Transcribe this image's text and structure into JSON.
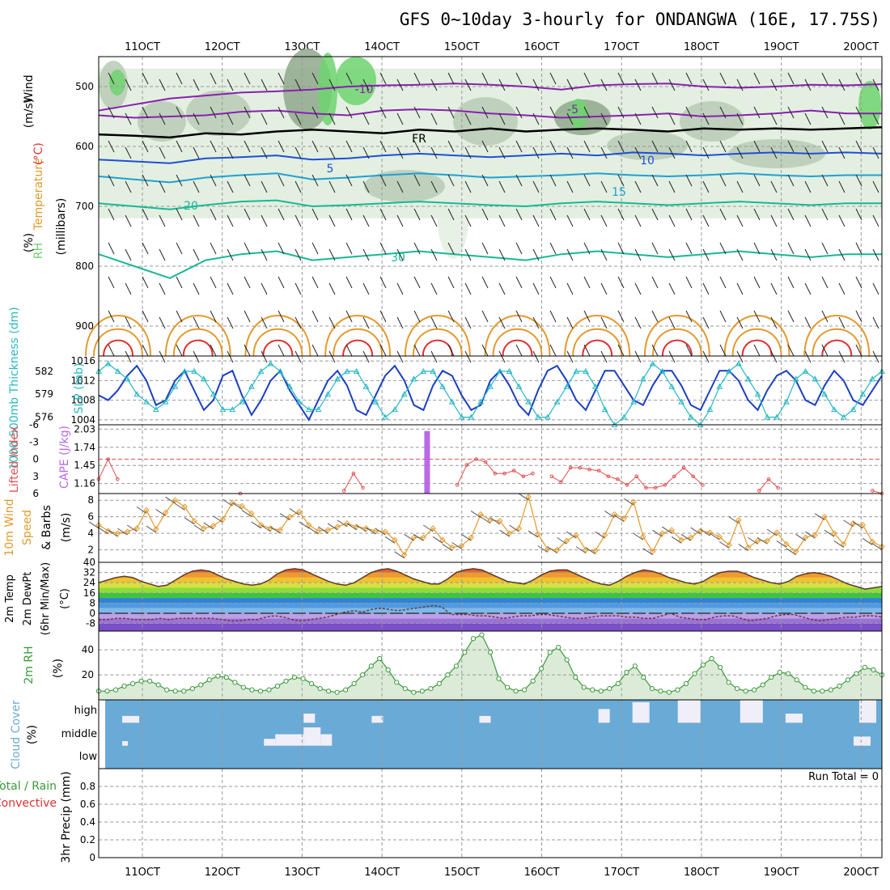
{
  "title": "GFS 0~10day 3-hourly for ONDANGWA (16E, 17.75S)",
  "x_axis": {
    "ticks": [
      "11OCT",
      "12OCT",
      "13OCT",
      "14OCT",
      "15OCT",
      "16OCT",
      "17OCT",
      "18OCT",
      "19OCT",
      "20OCT"
    ]
  },
  "colors": {
    "rh_light": "#e3efe0",
    "rh_mid": "#b9cbb6",
    "rh_dark": "#8fa88c",
    "rh_green": "#6fd46f",
    "wind_purple": "#8a1fb0",
    "freezing": "#000000",
    "temp_blue": "#1f4fd6",
    "temp_cyan": "#1fa0d6",
    "temp_teal": "#17b897",
    "temp_orange": "#e39a2d",
    "temp_red": "#e03030",
    "slp": "#1b3fc2",
    "thickness": "#27b8c4",
    "cape": "#b86ae8",
    "lifted_index": "#e05050",
    "wind_speed": "#e39a2d",
    "barb": "#555555",
    "rh2m": "#3a9a3a",
    "cloud_sky": "#6aaad6",
    "cloud_white": "#f0eef7"
  },
  "chart_data": [
    {
      "panel": "upper-air",
      "type": "heatmap",
      "ylabel_parts": [
        "Wind",
        "(m/s)",
        "Temperature",
        "(°C)",
        "RH",
        "(%)",
        "(millibars)"
      ],
      "y_ticks": [
        "500",
        "600",
        "700",
        "800",
        "900"
      ],
      "y_range": [
        450,
        950
      ],
      "contour_labels": [
        "-10",
        "-5",
        "FR",
        "5",
        "10",
        "15",
        "20",
        "30"
      ],
      "temperature_contours": [
        {
          "level": -10,
          "color": "wind_purple",
          "pressure": [
            540,
            530,
            520,
            515,
            510,
            508,
            505,
            500,
            498,
            497,
            495,
            497,
            500,
            505,
            498,
            496,
            495,
            500,
            502,
            500,
            497,
            498,
            496
          ]
        },
        {
          "level": -5,
          "color": "wind_purple",
          "pressure": [
            548,
            552,
            550,
            548,
            542,
            540,
            545,
            548,
            540,
            538,
            540,
            545,
            548,
            552,
            550,
            548,
            545,
            550,
            548,
            545,
            540,
            545,
            545
          ]
        },
        {
          "level": 0,
          "label": "FR",
          "color": "freezing",
          "pressure": [
            580,
            582,
            585,
            578,
            580,
            575,
            572,
            575,
            578,
            572,
            575,
            570,
            575,
            572,
            570,
            572,
            575,
            570,
            572,
            570,
            572,
            570,
            568
          ]
        },
        {
          "level": 5,
          "color": "temp_blue",
          "pressure": [
            622,
            625,
            628,
            620,
            618,
            615,
            622,
            620,
            615,
            612,
            615,
            618,
            615,
            612,
            615,
            610,
            612,
            615,
            612,
            610,
            612,
            610,
            612
          ]
        },
        {
          "level": 10,
          "color": "temp_cyan",
          "pressure": [
            650,
            655,
            660,
            652,
            648,
            645,
            655,
            652,
            648,
            645,
            648,
            652,
            650,
            648,
            645,
            648,
            650,
            648,
            645,
            648,
            650,
            648,
            648
          ]
        },
        {
          "level": 15,
          "color": "temp_teal",
          "pressure": [
            695,
            700,
            705,
            698,
            692,
            690,
            700,
            698,
            695,
            692,
            695,
            698,
            700,
            695,
            692,
            695,
            698,
            695,
            692,
            695,
            698,
            695,
            695
          ]
        },
        {
          "level": 20,
          "color": "temp_teal",
          "pressure": [
            780,
            800,
            820,
            790,
            780,
            775,
            790,
            785,
            780,
            775,
            780,
            785,
            790,
            780,
            775,
            780,
            785,
            780,
            775,
            780,
            785,
            780,
            780
          ]
        }
      ]
    },
    {
      "panel": "slp-thickness",
      "type": "line",
      "ylabel_left": "1000-500mb Thickness (dm)",
      "ylabel_right": "SLP (mb)",
      "left_ticks": [
        "582",
        "579",
        "576"
      ],
      "left_range": [
        575,
        584
      ],
      "right_ticks": [
        "1016",
        "1012",
        "1008",
        "1004"
      ],
      "right_range": [
        1003,
        1017
      ],
      "series": [
        {
          "key": "slp",
          "values": [
            1009,
            1008,
            1010,
            1013,
            1015,
            1012,
            1007,
            1008,
            1012,
            1014,
            1010,
            1006,
            1008,
            1013,
            1014,
            1009,
            1005,
            1008,
            1012,
            1014,
            1010,
            1007,
            1004,
            1008,
            1012,
            1014,
            1011,
            1006,
            1005,
            1009,
            1013,
            1015,
            1012,
            1007,
            1006,
            1011,
            1014,
            1013,
            1009,
            1006,
            1007,
            1012,
            1014,
            1011,
            1007,
            1005,
            1010,
            1014,
            1015,
            1012,
            1008,
            1006,
            1010,
            1014,
            1014,
            1011,
            1008,
            1007,
            1011,
            1014,
            1014,
            1011,
            1007,
            1006,
            1010,
            1014,
            1014,
            1012,
            1008,
            1006,
            1010,
            1013,
            1014,
            1012,
            1008,
            1007,
            1011,
            1014,
            1012,
            1008,
            1007,
            1010,
            1013
          ]
        },
        {
          "key": "thickness",
          "values": [
            582,
            583,
            582,
            581,
            579,
            578,
            577,
            578,
            580,
            582,
            582,
            581,
            579,
            577,
            577,
            578,
            580,
            582,
            583,
            582,
            580,
            578,
            577,
            577,
            579,
            581,
            582,
            582,
            580,
            578,
            576,
            577,
            579,
            581,
            582,
            582,
            580,
            578,
            576,
            576,
            578,
            580,
            582,
            582,
            580,
            578,
            576,
            576,
            578,
            580,
            582,
            582,
            580,
            577,
            575,
            576,
            578,
            581,
            583,
            582,
            580,
            578,
            576,
            575,
            577,
            580,
            582,
            583,
            581,
            579,
            576,
            576,
            578,
            581,
            582,
            581,
            579,
            577,
            576,
            577,
            579,
            581,
            582
          ]
        }
      ]
    },
    {
      "panel": "cape-lifted-index",
      "type": "bar",
      "ylabel_left": "Lifted Index",
      "ylabel_right": "CAPE (J/kg)",
      "left_ticks": [
        "-6",
        "-3",
        "0",
        "3",
        "6"
      ],
      "left_range": [
        -6,
        6
      ],
      "right_ticks": [
        "2.03",
        "1.74",
        "1.45",
        "1.16"
      ],
      "right_range": [
        1.0,
        2.1
      ],
      "lifted_index": [
        3.5,
        0.0,
        3.5,
        null,
        null,
        null,
        null,
        null,
        null,
        null,
        null,
        null,
        null,
        null,
        null,
        6.0,
        null,
        null,
        null,
        null,
        null,
        null,
        null,
        null,
        null,
        null,
        5.5,
        2.5,
        5.0,
        null,
        null,
        null,
        null,
        null,
        null,
        null,
        null,
        null,
        4.5,
        1.0,
        0.0,
        0.5,
        2.5,
        2.5,
        2.0,
        3.0,
        2.5,
        null,
        3.0,
        4.0,
        1.5,
        1.5,
        1.8,
        2.0,
        3.0,
        3.5,
        4.5,
        3.0,
        5.0,
        5.0,
        4.5,
        3.0,
        1.5,
        3.0,
        4.5,
        null,
        null,
        null,
        null,
        null,
        5.5,
        3.5,
        5.0,
        null,
        null,
        null,
        null,
        null,
        null,
        null,
        null,
        null,
        5.5,
        6.0
      ],
      "cape": {
        "x_index": 32,
        "value": 2.0
      }
    },
    {
      "panel": "wind10m",
      "type": "line",
      "ylabel": [
        "10m Wind",
        "Speed",
        "& Barbs",
        "(m/s)"
      ],
      "y_ticks": [
        "8",
        "6",
        "4",
        "2"
      ],
      "y_range": [
        0.5,
        8.8
      ],
      "speed": [
        5.0,
        4.3,
        4.0,
        4.2,
        4.6,
        6.8,
        4.5,
        6.5,
        8.0,
        7.2,
        5.5,
        4.6,
        4.9,
        5.7,
        7.7,
        7.3,
        6.4,
        5.0,
        4.6,
        4.4,
        6.0,
        6.6,
        5.0,
        4.3,
        4.4,
        4.8,
        5.2,
        4.8,
        4.6,
        4.3,
        4.2,
        3.2,
        1.4,
        3.5,
        3.5,
        4.6,
        3.2,
        2.3,
        2.5,
        3.5,
        6.3,
        5.6,
        5.5,
        4.0,
        4.6,
        8.4,
        3.9,
        2.1,
        2.0,
        3.1,
        3.8,
        2.0,
        1.9,
        3.8,
        6.3,
        5.8,
        7.8,
        3.6,
        1.8,
        4.0,
        4.4,
        3.2,
        3.5,
        4.3,
        4.1,
        3.6,
        2.6,
        5.6,
        2.3,
        3.1,
        3.1,
        4.1,
        2.7,
        1.8,
        3.5,
        3.8,
        6.0,
        4.0,
        2.7,
        5.2,
        5.0,
        3.0,
        2.4
      ]
    },
    {
      "panel": "temp2m",
      "type": "area",
      "ylabel": [
        "2m Temp",
        "2m DewPt",
        "(6hr Min/Max)",
        "(°C)"
      ],
      "y_ticks": [
        "40",
        "32",
        "24",
        "16",
        "8",
        "0",
        "-8"
      ],
      "y_range": [
        -14,
        40
      ],
      "temperature": [
        24,
        26,
        28,
        29,
        28,
        25,
        23,
        21,
        22,
        26,
        30,
        33,
        34,
        33,
        30,
        27,
        25,
        23,
        22,
        23,
        26,
        31,
        34,
        35,
        34,
        31,
        28,
        25,
        23,
        22,
        24,
        28,
        32,
        34,
        35,
        33,
        30,
        27,
        25,
        23,
        23,
        27,
        32,
        34,
        35,
        34,
        31,
        28,
        25,
        24,
        23,
        26,
        30,
        33,
        34,
        34,
        31,
        28,
        25,
        23,
        22,
        25,
        29,
        32,
        34,
        33,
        31,
        28,
        26,
        24,
        23,
        25,
        29,
        32,
        33,
        33,
        31,
        28,
        26,
        24,
        23,
        25,
        29,
        31,
        32,
        31,
        29,
        26,
        23,
        21,
        19,
        20,
        21
      ],
      "dewpoint": [
        -5,
        -5,
        -4,
        -4,
        -5,
        -5,
        -5,
        -4,
        -5,
        -4,
        -4,
        -4,
        -4,
        -4,
        -5,
        -6,
        -6,
        -5,
        -5,
        -3,
        -2,
        -3,
        -5,
        -6,
        -5,
        -4,
        -3,
        -1,
        1,
        2,
        1,
        3,
        4,
        3,
        2,
        3,
        4,
        5,
        6,
        5,
        -1,
        -1,
        -1,
        -2,
        -2,
        -3,
        -4,
        -3,
        -2,
        -2,
        -1,
        -1,
        -2,
        -3,
        -4,
        -4,
        -3,
        -2,
        -2,
        -2,
        -3,
        -3,
        -4,
        -4,
        -2,
        0,
        -3,
        -4,
        -5,
        -5,
        -3,
        -2,
        -2,
        -4,
        -6,
        -5,
        -4,
        -2,
        -1,
        -1,
        -3,
        -5,
        -6,
        -5,
        -4,
        -3,
        -3,
        -2,
        -2,
        -3
      ]
    },
    {
      "panel": "rh2m",
      "type": "area",
      "ylabel": [
        "2m RH",
        "(%)"
      ],
      "y_ticks": [
        "40",
        "20"
      ],
      "y_range": [
        0,
        55
      ],
      "values": [
        7,
        7,
        8,
        11,
        13,
        15,
        15,
        12,
        8,
        7,
        7,
        9,
        12,
        16,
        19,
        18,
        14,
        10,
        8,
        7,
        8,
        11,
        15,
        18,
        17,
        13,
        9,
        7,
        6,
        8,
        13,
        20,
        27,
        33,
        24,
        14,
        9,
        6,
        7,
        9,
        13,
        20,
        27,
        38,
        49,
        52,
        38,
        17,
        10,
        7,
        8,
        15,
        25,
        38,
        42,
        32,
        18,
        10,
        8,
        7,
        9,
        13,
        22,
        27,
        18,
        9,
        7,
        6,
        8,
        13,
        21,
        28,
        33,
        26,
        14,
        9,
        7,
        8,
        12,
        18,
        22,
        21,
        16,
        10,
        7,
        7,
        8,
        11,
        16,
        21,
        26,
        24,
        20
      ]
    },
    {
      "panel": "cloud-cover",
      "type": "bar",
      "ylabel": [
        "Cloud Cover",
        "(%)"
      ],
      "levels": [
        "high",
        "middle",
        "low"
      ],
      "high_segments": [
        [
          3,
          6,
          0.3
        ],
        [
          35,
          37,
          0.4
        ],
        [
          47,
          49,
          0.3
        ],
        [
          66,
          68,
          0.3
        ],
        [
          87,
          89,
          0.6
        ],
        [
          93,
          96,
          0.9
        ],
        [
          101,
          105,
          1.0
        ],
        [
          112,
          116,
          1.0
        ],
        [
          120,
          123,
          0.4
        ],
        [
          133,
          136,
          1.0
        ]
      ],
      "middle_segments": [
        [
          3,
          4,
          0.2
        ],
        [
          28,
          30,
          0.3
        ],
        [
          30,
          35,
          0.5
        ],
        [
          35,
          38,
          0.8
        ],
        [
          38,
          40,
          0.5
        ],
        [
          132,
          135,
          0.4
        ]
      ],
      "low_segments": []
    },
    {
      "panel": "precip",
      "type": "bar",
      "ylabel_left": [
        "Total / Rain",
        "Convective"
      ],
      "ylabel_axis": "3hr Precip (mm)",
      "y_ticks": [
        "0.8",
        "0.6",
        "0.4",
        "0.2",
        "0"
      ],
      "y_range": [
        0,
        1.0
      ],
      "run_total_label": "Run Total = 0",
      "values": []
    }
  ]
}
